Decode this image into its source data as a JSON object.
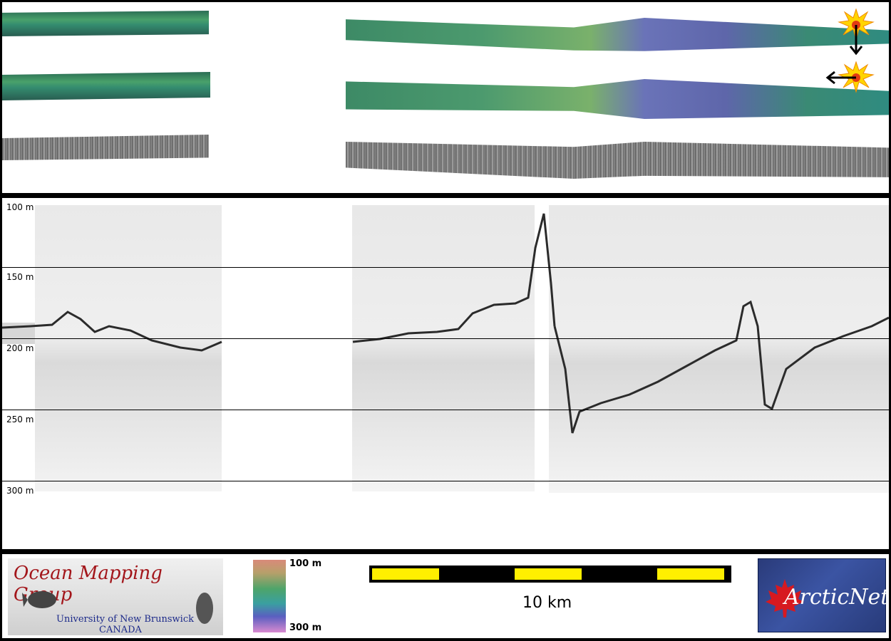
{
  "profile": {
    "depth_labels": [
      "100 m",
      "150 m",
      "200 m",
      "250 m",
      "300 m"
    ]
  },
  "legend": {
    "colorbar_top": "100 m",
    "colorbar_bottom": "300 m"
  },
  "scale": {
    "label": "10 km",
    "segment_color": "#ffef00"
  },
  "logos": {
    "omg_title": "Ocean Mapping Group",
    "omg_line1": "University of New Brunswick",
    "omg_line2": "CANADA",
    "arctic_text": "ArcticNet"
  },
  "colors": {
    "frame": "#000000",
    "omg_title": "#a3161b",
    "omg_subtitle": "#1c2a8a",
    "arctic_bg": "#3b54a3",
    "maple_leaf": "#d71920"
  },
  "icons": {
    "illumination_marker": "sun-icon",
    "arrow_down": "arrow-down-icon",
    "arrow_left": "arrow-left-icon"
  }
}
